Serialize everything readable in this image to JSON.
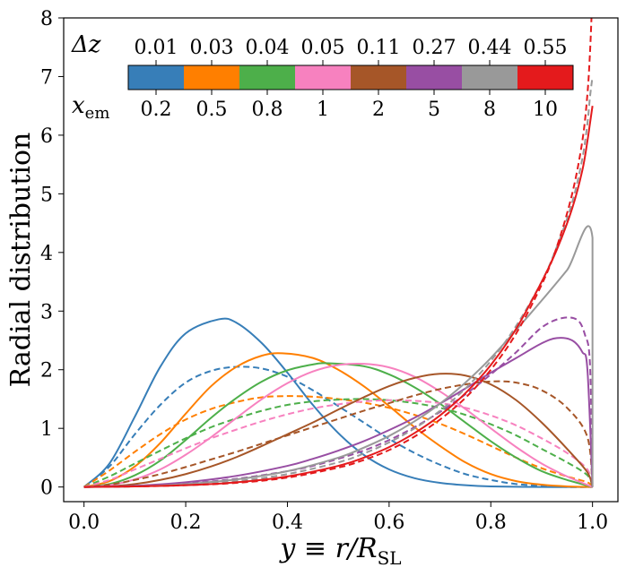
{
  "chart_data": {
    "type": "line",
    "title": "",
    "xlabel": "y ≡ r/R_SL",
    "xlabel_main": "y ≡ r/R",
    "xlabel_sub": "SL",
    "ylabel": "Radial distribution",
    "xlim": [
      -0.04,
      1.05
    ],
    "ylim": [
      -0.25,
      8.0
    ],
    "xticks": [
      0.0,
      0.2,
      0.4,
      0.6,
      0.8,
      1.0
    ],
    "xtick_labels": [
      "0.0",
      "0.2",
      "0.4",
      "0.6",
      "0.8",
      "1.0"
    ],
    "yticks": [
      0,
      1,
      2,
      3,
      4,
      5,
      6,
      7,
      8
    ],
    "ytick_labels": [
      "0",
      "1",
      "2",
      "3",
      "4",
      "5",
      "6",
      "7",
      "8"
    ],
    "grid": false,
    "legend": "colorbar-inset-top",
    "colorbar": {
      "top_title": "Δz",
      "bottom_title": "x",
      "bottom_title_sub": "em",
      "top_labels": [
        "0.01",
        "0.03",
        "0.04",
        "0.05",
        "0.11",
        "0.27",
        "0.44",
        "0.55"
      ],
      "bottom_labels": [
        "0.2",
        "0.5",
        "0.8",
        "1",
        "2",
        "5",
        "8",
        "10"
      ],
      "colors": [
        "#377eb8",
        "#ff7f00",
        "#4daf4a",
        "#f781bf",
        "#a65628",
        "#984ea3",
        "#999999",
        "#e41a1c"
      ]
    },
    "series": [
      {
        "name": "x_em=0.2 solid",
        "color": "#377eb8",
        "style": "solid",
        "x": [
          0.0,
          0.05,
          0.1,
          0.15,
          0.2,
          0.265,
          0.3,
          0.35,
          0.4,
          0.45,
          0.5,
          0.55,
          0.6,
          0.65,
          0.7,
          0.75,
          0.8,
          0.9,
          1.0
        ],
        "values": [
          0.0,
          0.4,
          1.2,
          2.05,
          2.62,
          2.86,
          2.8,
          2.45,
          1.95,
          1.4,
          0.92,
          0.55,
          0.3,
          0.15,
          0.07,
          0.03,
          0.01,
          0.0,
          0.0
        ]
      },
      {
        "name": "x_em=0.2 dashed",
        "color": "#377eb8",
        "style": "dashed",
        "x": [
          0.0,
          0.05,
          0.1,
          0.15,
          0.2,
          0.25,
          0.3,
          0.35,
          0.4,
          0.45,
          0.5,
          0.55,
          0.6,
          0.65,
          0.7,
          0.75,
          0.8,
          0.85,
          0.9,
          0.95,
          1.0
        ],
        "values": [
          0.0,
          0.35,
          0.9,
          1.4,
          1.78,
          1.98,
          2.05,
          2.02,
          1.88,
          1.65,
          1.38,
          1.1,
          0.82,
          0.58,
          0.38,
          0.22,
          0.12,
          0.05,
          0.02,
          0.0,
          0.0
        ]
      },
      {
        "name": "x_em=0.5 solid",
        "color": "#ff7f00",
        "style": "solid",
        "x": [
          0.0,
          0.05,
          0.1,
          0.15,
          0.2,
          0.25,
          0.3,
          0.35,
          0.39,
          0.45,
          0.5,
          0.55,
          0.6,
          0.65,
          0.7,
          0.75,
          0.8,
          0.85,
          0.9,
          0.95,
          1.0
        ],
        "values": [
          0.0,
          0.1,
          0.35,
          0.75,
          1.25,
          1.72,
          2.05,
          2.24,
          2.28,
          2.2,
          2.0,
          1.72,
          1.38,
          1.02,
          0.7,
          0.42,
          0.22,
          0.1,
          0.04,
          0.01,
          0.0
        ]
      },
      {
        "name": "x_em=0.5 dashed",
        "color": "#ff7f00",
        "style": "dashed",
        "x": [
          0.0,
          0.05,
          0.1,
          0.15,
          0.2,
          0.25,
          0.3,
          0.35,
          0.4,
          0.45,
          0.5,
          0.55,
          0.6,
          0.65,
          0.7,
          0.75,
          0.8,
          0.85,
          0.9,
          0.95,
          0.99,
          1.0
        ],
        "values": [
          0.0,
          0.28,
          0.6,
          0.9,
          1.15,
          1.33,
          1.45,
          1.53,
          1.55,
          1.54,
          1.5,
          1.44,
          1.35,
          1.23,
          1.08,
          0.9,
          0.7,
          0.5,
          0.32,
          0.18,
          0.08,
          0.0
        ]
      },
      {
        "name": "x_em=0.8 solid",
        "color": "#4daf4a",
        "style": "solid",
        "x": [
          0.0,
          0.05,
          0.1,
          0.15,
          0.2,
          0.25,
          0.3,
          0.35,
          0.4,
          0.45,
          0.48,
          0.55,
          0.6,
          0.65,
          0.7,
          0.75,
          0.8,
          0.85,
          0.9,
          0.95,
          1.0
        ],
        "values": [
          0.0,
          0.05,
          0.2,
          0.45,
          0.8,
          1.18,
          1.52,
          1.8,
          1.99,
          2.09,
          2.11,
          2.06,
          1.92,
          1.7,
          1.42,
          1.1,
          0.78,
          0.5,
          0.27,
          0.12,
          0.0
        ]
      },
      {
        "name": "x_em=0.8 dashed",
        "color": "#4daf4a",
        "style": "dashed",
        "x": [
          0.0,
          0.05,
          0.1,
          0.15,
          0.2,
          0.25,
          0.3,
          0.35,
          0.4,
          0.45,
          0.5,
          0.55,
          0.6,
          0.65,
          0.7,
          0.75,
          0.8,
          0.85,
          0.9,
          0.95,
          0.99,
          1.0
        ],
        "values": [
          0.0,
          0.18,
          0.4,
          0.62,
          0.83,
          1.02,
          1.17,
          1.3,
          1.4,
          1.46,
          1.49,
          1.5,
          1.48,
          1.43,
          1.35,
          1.23,
          1.07,
          0.88,
          0.65,
          0.42,
          0.2,
          0.0
        ]
      },
      {
        "name": "x_em=1 solid",
        "color": "#f781bf",
        "style": "solid",
        "x": [
          0.0,
          0.05,
          0.1,
          0.15,
          0.2,
          0.25,
          0.3,
          0.35,
          0.4,
          0.45,
          0.5,
          0.55,
          0.6,
          0.65,
          0.7,
          0.75,
          0.8,
          0.85,
          0.9,
          0.95,
          1.0
        ],
        "values": [
          0.0,
          0.03,
          0.13,
          0.3,
          0.55,
          0.85,
          1.18,
          1.5,
          1.77,
          1.97,
          2.08,
          2.1,
          2.04,
          1.88,
          1.63,
          1.33,
          1.0,
          0.68,
          0.4,
          0.18,
          0.0
        ]
      },
      {
        "name": "x_em=1 dashed",
        "color": "#f781bf",
        "style": "dashed",
        "x": [
          0.0,
          0.05,
          0.1,
          0.15,
          0.2,
          0.25,
          0.3,
          0.35,
          0.4,
          0.45,
          0.5,
          0.55,
          0.6,
          0.65,
          0.7,
          0.75,
          0.8,
          0.85,
          0.9,
          0.95,
          0.99,
          1.0
        ],
        "values": [
          0.0,
          0.12,
          0.3,
          0.48,
          0.66,
          0.83,
          0.98,
          1.12,
          1.24,
          1.34,
          1.41,
          1.46,
          1.48,
          1.47,
          1.43,
          1.35,
          1.22,
          1.05,
          0.83,
          0.58,
          0.3,
          0.0
        ]
      },
      {
        "name": "x_em=2 solid",
        "color": "#a65628",
        "style": "solid",
        "x": [
          0.0,
          0.05,
          0.1,
          0.15,
          0.2,
          0.25,
          0.3,
          0.35,
          0.4,
          0.45,
          0.5,
          0.55,
          0.6,
          0.65,
          0.7,
          0.75,
          0.8,
          0.85,
          0.9,
          0.95,
          0.99,
          1.0
        ],
        "values": [
          0.0,
          0.01,
          0.05,
          0.12,
          0.22,
          0.35,
          0.51,
          0.7,
          0.9,
          1.1,
          1.32,
          1.53,
          1.72,
          1.86,
          1.93,
          1.9,
          1.75,
          1.48,
          1.1,
          0.65,
          0.25,
          0.0
        ]
      },
      {
        "name": "x_em=2 dashed",
        "color": "#a65628",
        "style": "dashed",
        "x": [
          0.0,
          0.05,
          0.1,
          0.15,
          0.2,
          0.25,
          0.3,
          0.35,
          0.4,
          0.45,
          0.5,
          0.55,
          0.6,
          0.65,
          0.7,
          0.75,
          0.8,
          0.85,
          0.9,
          0.95,
          0.99,
          1.0
        ],
        "values": [
          0.0,
          0.04,
          0.12,
          0.22,
          0.34,
          0.47,
          0.6,
          0.74,
          0.88,
          1.02,
          1.16,
          1.3,
          1.43,
          1.56,
          1.67,
          1.75,
          1.8,
          1.78,
          1.65,
          1.35,
          0.85,
          0.0
        ]
      },
      {
        "name": "x_em=5 solid",
        "color": "#984ea3",
        "style": "solid",
        "x": [
          0.0,
          0.1,
          0.2,
          0.3,
          0.4,
          0.45,
          0.5,
          0.55,
          0.6,
          0.65,
          0.7,
          0.75,
          0.8,
          0.85,
          0.9,
          0.93,
          0.96,
          0.98,
          0.99,
          1.0
        ],
        "values": [
          0.0,
          0.02,
          0.08,
          0.19,
          0.36,
          0.48,
          0.62,
          0.78,
          0.97,
          1.18,
          1.42,
          1.68,
          1.95,
          2.2,
          2.45,
          2.54,
          2.5,
          2.3,
          2.0,
          0.0
        ]
      },
      {
        "name": "x_em=5 dashed",
        "color": "#984ea3",
        "style": "dashed",
        "x": [
          0.0,
          0.1,
          0.2,
          0.3,
          0.4,
          0.45,
          0.5,
          0.55,
          0.6,
          0.65,
          0.7,
          0.75,
          0.8,
          0.85,
          0.9,
          0.94,
          0.97,
          0.985,
          0.995,
          1.0
        ],
        "values": [
          0.0,
          0.02,
          0.06,
          0.14,
          0.27,
          0.36,
          0.48,
          0.62,
          0.8,
          1.02,
          1.28,
          1.58,
          1.92,
          2.3,
          2.72,
          2.88,
          2.85,
          2.6,
          2.1,
          0.0
        ]
      },
      {
        "name": "x_em=8 solid",
        "color": "#999999",
        "style": "solid",
        "x": [
          0.0,
          0.1,
          0.2,
          0.3,
          0.4,
          0.5,
          0.55,
          0.6,
          0.65,
          0.7,
          0.75,
          0.8,
          0.85,
          0.9,
          0.95,
          1.0,
          1.0
        ],
        "values": [
          0.0,
          0.01,
          0.05,
          0.13,
          0.27,
          0.5,
          0.67,
          0.87,
          1.12,
          1.42,
          1.78,
          2.2,
          2.68,
          3.18,
          3.7,
          4.25,
          0.0
        ]
      },
      {
        "name": "x_em=8 dashed",
        "color": "#999999",
        "style": "dashed",
        "x": [
          0.0,
          0.1,
          0.2,
          0.3,
          0.4,
          0.5,
          0.55,
          0.6,
          0.65,
          0.7,
          0.75,
          0.8,
          0.85,
          0.9,
          0.93,
          0.96,
          0.98,
          0.99,
          0.995,
          1.0
        ],
        "values": [
          0.0,
          0.01,
          0.04,
          0.1,
          0.22,
          0.42,
          0.57,
          0.76,
          1.0,
          1.3,
          1.68,
          2.15,
          2.75,
          3.5,
          4.1,
          4.85,
          5.6,
          6.2,
          6.65,
          7.0
        ]
      },
      {
        "name": "x_em=10 solid",
        "color": "#e41a1c",
        "style": "solid",
        "x": [
          0.0,
          0.1,
          0.2,
          0.3,
          0.4,
          0.5,
          0.55,
          0.6,
          0.65,
          0.7,
          0.75,
          0.8,
          0.85,
          0.9,
          0.93,
          0.96,
          0.98,
          0.99,
          0.995,
          1.0
        ],
        "values": [
          0.0,
          0.01,
          0.03,
          0.08,
          0.18,
          0.36,
          0.5,
          0.68,
          0.92,
          1.22,
          1.6,
          2.08,
          2.7,
          3.5,
          4.05,
          4.75,
          5.4,
          5.9,
          6.2,
          6.5
        ]
      },
      {
        "name": "x_em=10 dashed",
        "color": "#e41a1c",
        "style": "dashed",
        "x": [
          0.0,
          0.1,
          0.2,
          0.3,
          0.4,
          0.5,
          0.55,
          0.6,
          0.65,
          0.7,
          0.75,
          0.8,
          0.85,
          0.9,
          0.93,
          0.96,
          0.98,
          0.99,
          0.995,
          0.998
        ],
        "values": [
          0.0,
          0.01,
          0.03,
          0.07,
          0.16,
          0.33,
          0.46,
          0.63,
          0.86,
          1.15,
          1.52,
          2.0,
          2.62,
          3.45,
          4.1,
          5.0,
          5.9,
          6.7,
          7.4,
          8.0
        ]
      }
    ]
  }
}
